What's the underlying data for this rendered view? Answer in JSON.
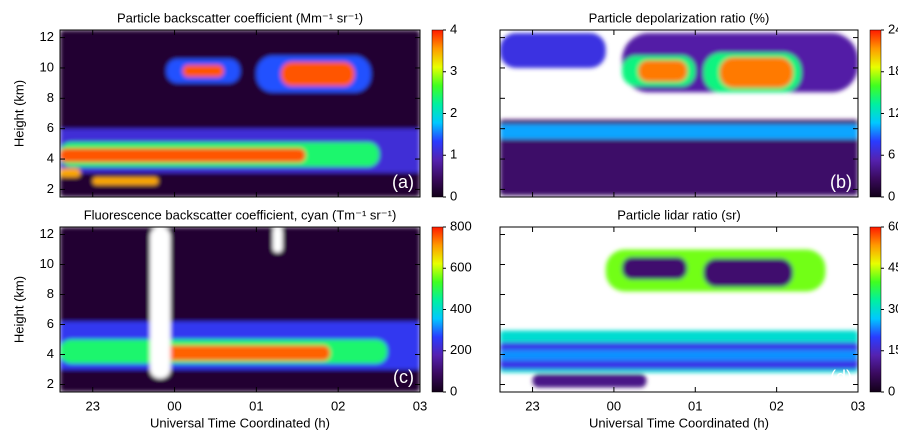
{
  "colormap": [
    "#120018",
    "#3a0a5e",
    "#5522b0",
    "#2a3cff",
    "#00c8ff",
    "#00f0a0",
    "#40ff20",
    "#e8ff00",
    "#ff9a00",
    "#ff1a00"
  ],
  "chart_data": [
    {
      "type": "heatmap",
      "title": "Particle backscatter coefficient (Mm⁻¹ sr⁻¹)",
      "y_label": "Height (km)",
      "panel_label": "(a)",
      "xlim": [
        22.6,
        27
      ],
      "xticks": [
        23,
        24,
        25,
        26,
        27
      ],
      "ylim": [
        1.5,
        12.5
      ],
      "yticks": [
        2,
        4,
        6,
        8,
        10,
        12
      ],
      "zlim": [
        0,
        4
      ],
      "zticks": [
        0,
        1,
        2,
        3,
        4
      ],
      "cells": [
        {
          "x": [
            22.6,
            27
          ],
          "y": [
            1.5,
            12.5
          ],
          "value": 0.15
        },
        {
          "x": [
            22.6,
            27
          ],
          "y": [
            3.1,
            6.0
          ],
          "value": 1.1
        },
        {
          "x": [
            22.6,
            26.5
          ],
          "y": [
            3.5,
            5.1
          ],
          "value": 2.4
        },
        {
          "x": [
            22.6,
            25.6
          ],
          "y": [
            3.8,
            4.7
          ],
          "value": 3.8
        },
        {
          "x": [
            23.9,
            24.8
          ],
          "y": [
            9.0,
            10.6
          ],
          "value": 1.4
        },
        {
          "x": [
            24.1,
            24.6
          ],
          "y": [
            9.4,
            10.2
          ],
          "value": 3.8
        },
        {
          "x": [
            25.0,
            26.4
          ],
          "y": [
            8.4,
            10.8
          ],
          "value": 1.4
        },
        {
          "x": [
            25.3,
            26.2
          ],
          "y": [
            8.8,
            10.4
          ],
          "value": 3.8
        },
        {
          "x": [
            22.6,
            22.85
          ],
          "y": [
            2.8,
            3.4
          ],
          "value": 3.5
        },
        {
          "x": [
            23.0,
            23.8
          ],
          "y": [
            2.3,
            2.8
          ],
          "value": 3.5
        }
      ]
    },
    {
      "type": "heatmap",
      "title": "Particle depolarization ratio (%)",
      "panel_label": "(b)",
      "xlim": [
        22.6,
        27
      ],
      "xticks": [
        23,
        24,
        25,
        26,
        27
      ],
      "ylim": [
        1.5,
        12.5
      ],
      "yticks": [
        2,
        4,
        6,
        8,
        10,
        12
      ],
      "zlim": [
        0,
        24
      ],
      "zticks": [
        0,
        6,
        12,
        18,
        24
      ],
      "cells": [
        {
          "x": [
            22.6,
            23.9
          ],
          "y": [
            10.0,
            12.3
          ],
          "value": 7
        },
        {
          "x": [
            24.1,
            27
          ],
          "y": [
            8.4,
            12.3
          ],
          "value": 5
        },
        {
          "x": [
            22.6,
            27
          ],
          "y": [
            1.6,
            6.6
          ],
          "value": 3
        },
        {
          "x": [
            22.6,
            27
          ],
          "y": [
            5.3,
            6.3
          ],
          "value": 10
        },
        {
          "x": [
            24.1,
            25.0
          ],
          "y": [
            8.8,
            10.8
          ],
          "value": 14
        },
        {
          "x": [
            24.3,
            24.9
          ],
          "y": [
            9.1,
            10.5
          ],
          "value": 22
        },
        {
          "x": [
            25.1,
            26.3
          ],
          "y": [
            8.4,
            11.0
          ],
          "value": 14
        },
        {
          "x": [
            25.3,
            26.2
          ],
          "y": [
            8.7,
            10.7
          ],
          "value": 22
        }
      ]
    },
    {
      "type": "heatmap",
      "title": "Fluorescence backscatter coefficient, cyan (Tm⁻¹ sr⁻¹)",
      "x_label": "Universal Time Coordinated (h)",
      "y_label": "Height (km)",
      "panel_label": "(c)",
      "xlim": [
        22.6,
        27
      ],
      "xticks": [
        23,
        {
          "value": 24,
          "label": "00"
        },
        {
          "value": 25,
          "label": "01"
        },
        {
          "value": 26,
          "label": "02"
        },
        {
          "value": 27,
          "label": "03"
        }
      ],
      "ylim": [
        1.5,
        12.5
      ],
      "yticks": [
        2,
        4,
        6,
        8,
        10,
        12
      ],
      "zlim": [
        0,
        800
      ],
      "zticks": [
        0,
        200,
        400,
        600,
        800
      ],
      "cells": [
        {
          "x": [
            22.6,
            27
          ],
          "y": [
            1.5,
            12.5
          ],
          "value": 30
        },
        {
          "x": [
            22.6,
            27
          ],
          "y": [
            3.0,
            6.2
          ],
          "value": 250
        },
        {
          "x": [
            22.6,
            26.6
          ],
          "y": [
            3.4,
            5.0
          ],
          "value": 480
        },
        {
          "x": [
            23.8,
            25.9
          ],
          "y": [
            3.6,
            4.6
          ],
          "value": 750
        },
        {
          "x": [
            23.7,
            23.95
          ],
          "y": [
            2.4,
            12.5
          ],
          "value": null
        },
        {
          "x": [
            25.2,
            25.32
          ],
          "y": [
            10.8,
            12.5
          ],
          "value": null
        }
      ]
    },
    {
      "type": "heatmap",
      "title": "Particle lidar ratio (sr)",
      "x_label": "Universal Time Coordinated (h)",
      "panel_label": "(d)",
      "xlim": [
        22.6,
        27
      ],
      "xticks": [
        23,
        {
          "value": 24,
          "label": "00"
        },
        {
          "value": 25,
          "label": "01"
        },
        {
          "value": 26,
          "label": "02"
        },
        {
          "value": 27,
          "label": "03"
        }
      ],
      "ylim": [
        1.5,
        12.5
      ],
      "yticks": [
        2,
        4,
        6,
        8,
        10,
        12
      ],
      "zlim": [
        0,
        60
      ],
      "zticks": [
        0,
        15,
        30,
        45,
        60
      ],
      "cells": [
        {
          "x": [
            23.9,
            26.6
          ],
          "y": [
            8.2,
            11.0
          ],
          "value": 42
        },
        {
          "x": [
            24.1,
            24.9
          ],
          "y": [
            9.0,
            10.5
          ],
          "value": 8
        },
        {
          "x": [
            25.1,
            26.2
          ],
          "y": [
            8.5,
            10.4
          ],
          "value": 8
        },
        {
          "x": [
            22.6,
            27
          ],
          "y": [
            2.8,
            5.6
          ],
          "value": 30
        },
        {
          "x": [
            22.6,
            27
          ],
          "y": [
            3.0,
            4.8
          ],
          "value": 18
        },
        {
          "x": [
            22.6,
            27
          ],
          "y": [
            3.6,
            4.3
          ],
          "value": 24
        },
        {
          "x": [
            23.0,
            24.4
          ],
          "y": [
            1.8,
            2.7
          ],
          "value": 10
        }
      ]
    }
  ]
}
